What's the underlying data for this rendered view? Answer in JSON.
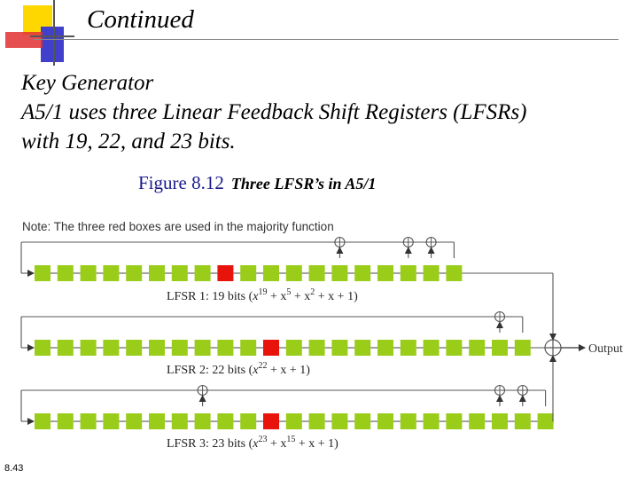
{
  "slide": {
    "title": "Continued",
    "heading": "Key Generator",
    "body_line1": "A5/1 uses three Linear Feedback Shift Registers (LFSRs)",
    "body_line2": "with 19, 22, and 23 bits.",
    "figure_number": "Figure 8.12",
    "figure_title": "Three LFSR’s in A5/1",
    "slide_number": "8.43"
  },
  "diagram": {
    "note": "Note: The three red boxes are used in the majority function",
    "output_label": "Output",
    "colors": {
      "cell": "#9acd1a",
      "clock_cell": "#e8140c",
      "line": "#555555"
    },
    "lfsrs": [
      {
        "name": "LFSR 1",
        "cells": 19,
        "clock_bit_index": 8,
        "tap_indices": [
          13,
          16,
          17,
          18
        ],
        "label": {
          "prefix": "LFSR 1: 19 bits (",
          "x": "x",
          "exp1": "19",
          "rest": " + x",
          "exp2": "5",
          "rest2": " + x",
          "exp3": "2",
          "rest3": " + x + 1)"
        }
      },
      {
        "name": "LFSR 2",
        "cells": 22,
        "clock_bit_index": 10,
        "tap_indices": [
          20,
          21
        ],
        "label": {
          "prefix": "LFSR 2: 22 bits (",
          "x": "x",
          "exp1": "22",
          "rest": " + x + 1)"
        }
      },
      {
        "name": "LFSR 3",
        "cells": 23,
        "clock_bit_index": 10,
        "tap_indices": [
          7,
          20,
          21,
          22
        ],
        "label": {
          "prefix": "LFSR 3: 23 bits (",
          "x": "x",
          "exp1": "23",
          "rest": " + x",
          "exp2": "15",
          "rest2": " + x + 1)"
        }
      }
    ]
  }
}
